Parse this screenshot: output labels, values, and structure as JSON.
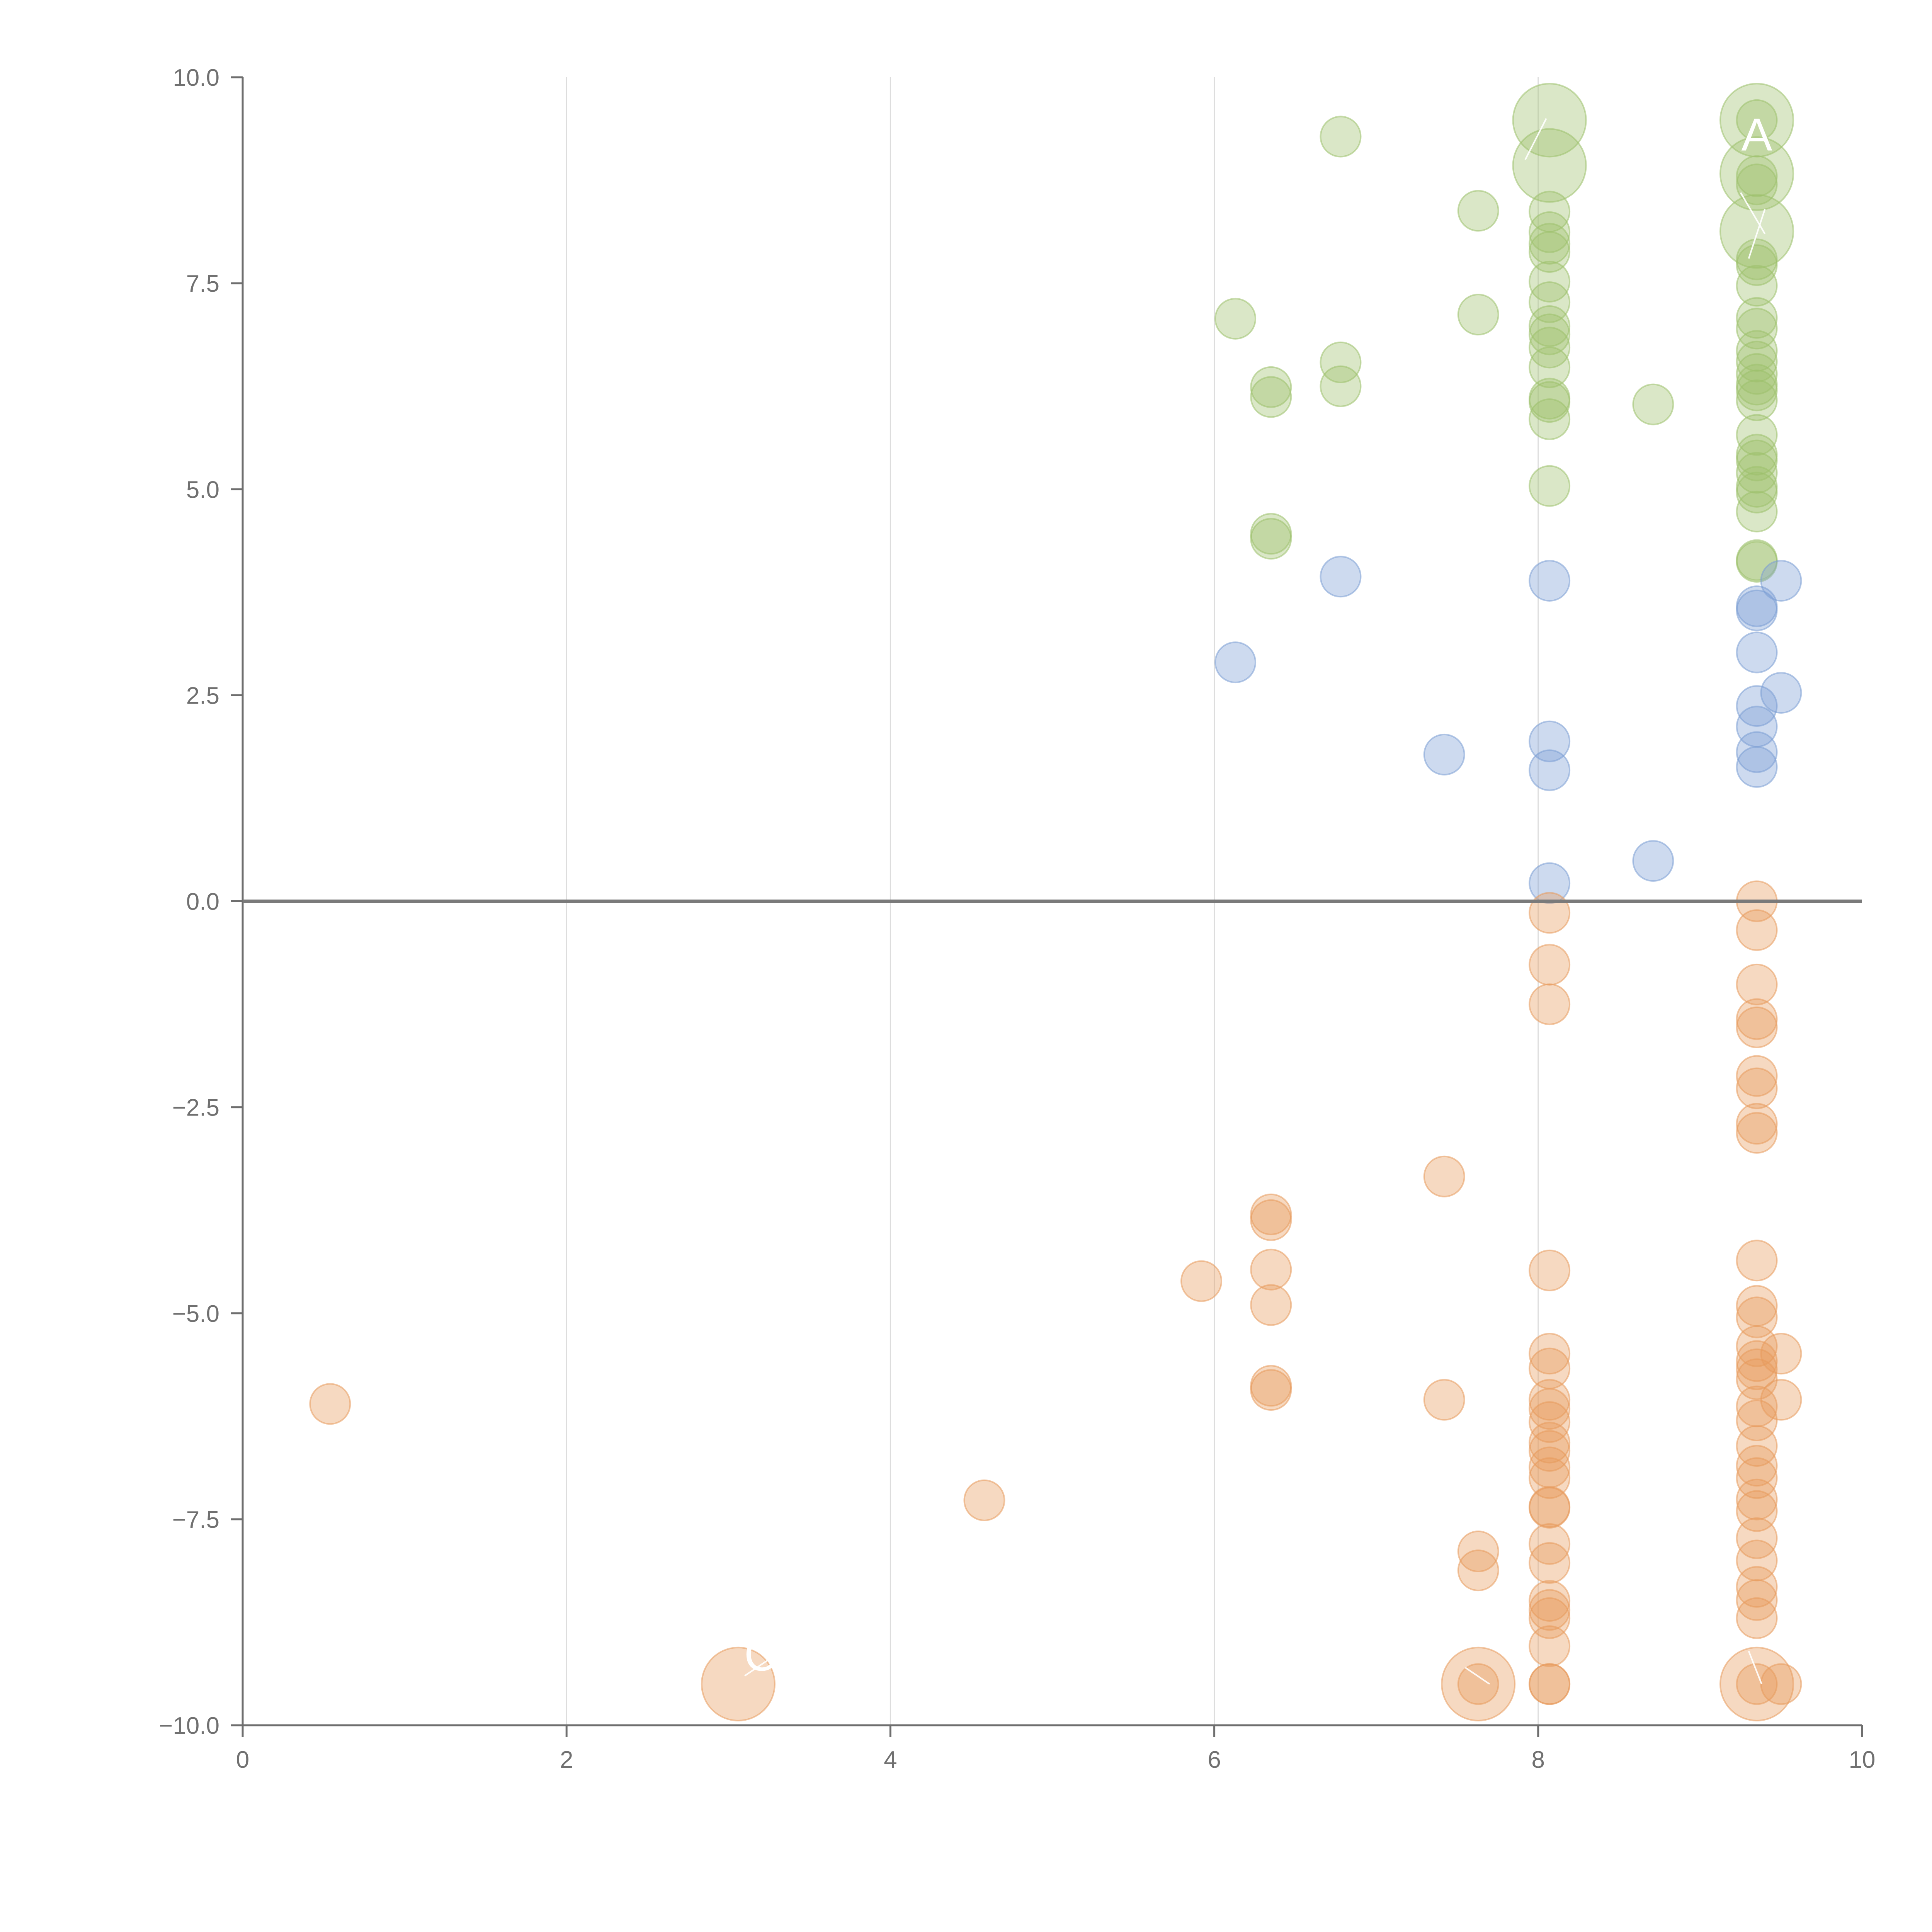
{
  "chart_data": {
    "type": "scatter",
    "title": "",
    "xlabel": "",
    "ylabel": "",
    "xlim": [
      0,
      10
    ],
    "ylim": [
      -10,
      10
    ],
    "x_ticks": [
      "0",
      "2",
      "4",
      "6",
      "8",
      "10"
    ],
    "y_ticks": [
      "10.0",
      "7.5",
      "5.0",
      "2.5",
      "0.0",
      "−2.5",
      "−5.0",
      "−7.5",
      "−10.0"
    ],
    "grid": "vertical",
    "zero_line": true,
    "colors": {
      "green": "#9dc16b",
      "blue": "#7b9fd4",
      "orange": "#e89a5c"
    },
    "series": [
      {
        "color": "green",
        "points": [
          {
            "x": 6.78,
            "y": 9.28
          },
          {
            "x": 7.63,
            "y": 8.38
          },
          {
            "x": 8.07,
            "y": 9.48,
            "s": 3
          },
          {
            "x": 8.07,
            "y": 8.93,
            "s": 3
          },
          {
            "x": 8.07,
            "y": 8.37
          },
          {
            "x": 8.07,
            "y": 8.12
          },
          {
            "x": 8.07,
            "y": 7.98
          },
          {
            "x": 8.07,
            "y": 7.88
          },
          {
            "x": 8.07,
            "y": 7.52
          },
          {
            "x": 8.07,
            "y": 7.27
          },
          {
            "x": 8.07,
            "y": 6.98
          },
          {
            "x": 8.07,
            "y": 6.88
          },
          {
            "x": 8.07,
            "y": 6.72
          },
          {
            "x": 8.07,
            "y": 6.48
          },
          {
            "x": 8.07,
            "y": 6.1
          },
          {
            "x": 8.07,
            "y": 6.06
          },
          {
            "x": 8.07,
            "y": 5.85
          },
          {
            "x": 8.07,
            "y": 5.04
          },
          {
            "x": 7.63,
            "y": 7.12
          },
          {
            "x": 6.13,
            "y": 7.07
          },
          {
            "x": 6.78,
            "y": 6.54
          },
          {
            "x": 6.78,
            "y": 6.25
          },
          {
            "x": 6.35,
            "y": 6.24
          },
          {
            "x": 6.35,
            "y": 6.12
          },
          {
            "x": 6.35,
            "y": 4.46
          },
          {
            "x": 6.35,
            "y": 4.4
          },
          {
            "x": 8.71,
            "y": 6.03
          },
          {
            "x": 9.35,
            "y": 9.48,
            "s": 3
          },
          {
            "x": 9.35,
            "y": 9.48
          },
          {
            "x": 9.35,
            "y": 8.83,
            "s": 3
          },
          {
            "x": 9.35,
            "y": 8.8
          },
          {
            "x": 9.35,
            "y": 8.7
          },
          {
            "x": 9.35,
            "y": 8.13,
            "s": 3
          },
          {
            "x": 9.35,
            "y": 7.79
          },
          {
            "x": 9.35,
            "y": 7.72
          },
          {
            "x": 9.35,
            "y": 7.47
          },
          {
            "x": 9.35,
            "y": 7.08
          },
          {
            "x": 9.35,
            "y": 6.95
          },
          {
            "x": 9.35,
            "y": 6.68
          },
          {
            "x": 9.35,
            "y": 6.55
          },
          {
            "x": 9.35,
            "y": 6.4
          },
          {
            "x": 9.35,
            "y": 6.27
          },
          {
            "x": 9.35,
            "y": 6.2
          },
          {
            "x": 9.35,
            "y": 6.08
          },
          {
            "x": 9.35,
            "y": 5.66
          },
          {
            "x": 9.35,
            "y": 5.42
          },
          {
            "x": 9.35,
            "y": 5.35
          },
          {
            "x": 9.35,
            "y": 5.2
          },
          {
            "x": 9.35,
            "y": 5.03
          },
          {
            "x": 9.35,
            "y": 4.96
          },
          {
            "x": 9.35,
            "y": 4.73
          },
          {
            "x": 9.35,
            "y": 4.14
          },
          {
            "x": 9.35,
            "y": 4.12
          }
        ]
      },
      {
        "color": "blue",
        "points": [
          {
            "x": 6.78,
            "y": 3.94
          },
          {
            "x": 6.13,
            "y": 2.9
          },
          {
            "x": 7.42,
            "y": 1.78
          },
          {
            "x": 8.07,
            "y": 3.89
          },
          {
            "x": 8.07,
            "y": 1.94
          },
          {
            "x": 8.07,
            "y": 1.59
          },
          {
            "x": 8.07,
            "y": 0.22
          },
          {
            "x": 8.71,
            "y": 0.49
          },
          {
            "x": 9.35,
            "y": 3.58
          },
          {
            "x": 9.35,
            "y": 3.53
          },
          {
            "x": 9.35,
            "y": 3.02
          },
          {
            "x": 9.35,
            "y": 2.37
          },
          {
            "x": 9.35,
            "y": 2.12
          },
          {
            "x": 9.35,
            "y": 1.81
          },
          {
            "x": 9.35,
            "y": 1.63
          },
          {
            "x": 9.5,
            "y": 3.89
          },
          {
            "x": 9.5,
            "y": 2.53
          }
        ]
      },
      {
        "color": "orange",
        "points": [
          {
            "x": 0.54,
            "y": -6.1
          },
          {
            "x": 3.06,
            "y": -9.5,
            "s": 3
          },
          {
            "x": 4.58,
            "y": -7.27
          },
          {
            "x": 5.92,
            "y": -4.61
          },
          {
            "x": 6.35,
            "y": -3.8
          },
          {
            "x": 6.35,
            "y": -3.87
          },
          {
            "x": 6.35,
            "y": -4.47
          },
          {
            "x": 6.35,
            "y": -4.9
          },
          {
            "x": 6.35,
            "y": -5.88
          },
          {
            "x": 6.35,
            "y": -5.93
          },
          {
            "x": 7.42,
            "y": -3.34
          },
          {
            "x": 7.42,
            "y": -6.05
          },
          {
            "x": 7.63,
            "y": -7.89
          },
          {
            "x": 7.63,
            "y": -8.12
          },
          {
            "x": 7.63,
            "y": -9.5,
            "s": 3
          },
          {
            "x": 7.63,
            "y": -9.5
          },
          {
            "x": 8.07,
            "y": -0.14
          },
          {
            "x": 8.07,
            "y": -0.77
          },
          {
            "x": 8.07,
            "y": -1.25
          },
          {
            "x": 8.07,
            "y": -4.48
          },
          {
            "x": 8.07,
            "y": -5.49
          },
          {
            "x": 8.07,
            "y": -5.67
          },
          {
            "x": 8.07,
            "y": -6.05
          },
          {
            "x": 8.07,
            "y": -6.16
          },
          {
            "x": 8.07,
            "y": -6.32
          },
          {
            "x": 8.07,
            "y": -6.57
          },
          {
            "x": 8.07,
            "y": -6.67
          },
          {
            "x": 8.07,
            "y": -6.87
          },
          {
            "x": 8.07,
            "y": -7.0
          },
          {
            "x": 8.07,
            "y": -7.35
          },
          {
            "x": 8.07,
            "y": -7.36
          },
          {
            "x": 8.07,
            "y": -7.8
          },
          {
            "x": 8.07,
            "y": -8.03
          },
          {
            "x": 8.07,
            "y": -8.49
          },
          {
            "x": 8.07,
            "y": -8.6
          },
          {
            "x": 8.07,
            "y": -8.7
          },
          {
            "x": 8.07,
            "y": -9.04
          },
          {
            "x": 8.07,
            "y": -9.5
          },
          {
            "x": 8.07,
            "y": -9.5
          },
          {
            "x": 9.35,
            "y": 0.0
          },
          {
            "x": 9.35,
            "y": -0.35
          },
          {
            "x": 9.35,
            "y": -1.01
          },
          {
            "x": 9.35,
            "y": -1.43
          },
          {
            "x": 9.35,
            "y": -1.53
          },
          {
            "x": 9.35,
            "y": -2.12
          },
          {
            "x": 9.35,
            "y": -2.27
          },
          {
            "x": 9.35,
            "y": -2.7
          },
          {
            "x": 9.35,
            "y": -2.81
          },
          {
            "x": 9.35,
            "y": -4.36
          },
          {
            "x": 9.35,
            "y": -4.91
          },
          {
            "x": 9.35,
            "y": -5.05
          },
          {
            "x": 9.35,
            "y": -5.4
          },
          {
            "x": 9.35,
            "y": -5.58
          },
          {
            "x": 9.35,
            "y": -5.68
          },
          {
            "x": 9.35,
            "y": -5.8
          },
          {
            "x": 9.35,
            "y": -6.13
          },
          {
            "x": 9.35,
            "y": -6.3
          },
          {
            "x": 9.35,
            "y": -6.61
          },
          {
            "x": 9.35,
            "y": -6.85
          },
          {
            "x": 9.35,
            "y": -7.0
          },
          {
            "x": 9.35,
            "y": -7.26
          },
          {
            "x": 9.35,
            "y": -7.4
          },
          {
            "x": 9.35,
            "y": -7.73
          },
          {
            "x": 9.35,
            "y": -8.0
          },
          {
            "x": 9.35,
            "y": -8.32
          },
          {
            "x": 9.35,
            "y": -8.48
          },
          {
            "x": 9.35,
            "y": -8.7
          },
          {
            "x": 9.35,
            "y": -9.5,
            "s": 3
          },
          {
            "x": 9.35,
            "y": -9.5
          },
          {
            "x": 9.5,
            "y": -5.49
          },
          {
            "x": 9.5,
            "y": -6.05
          },
          {
            "x": 9.5,
            "y": -9.5
          }
        ]
      }
    ],
    "annotations": [
      {
        "text": "A",
        "x": 9.35,
        "y": 9.3
      },
      {
        "text": "C",
        "x": 3.2,
        "y": -9.15
      }
    ]
  }
}
